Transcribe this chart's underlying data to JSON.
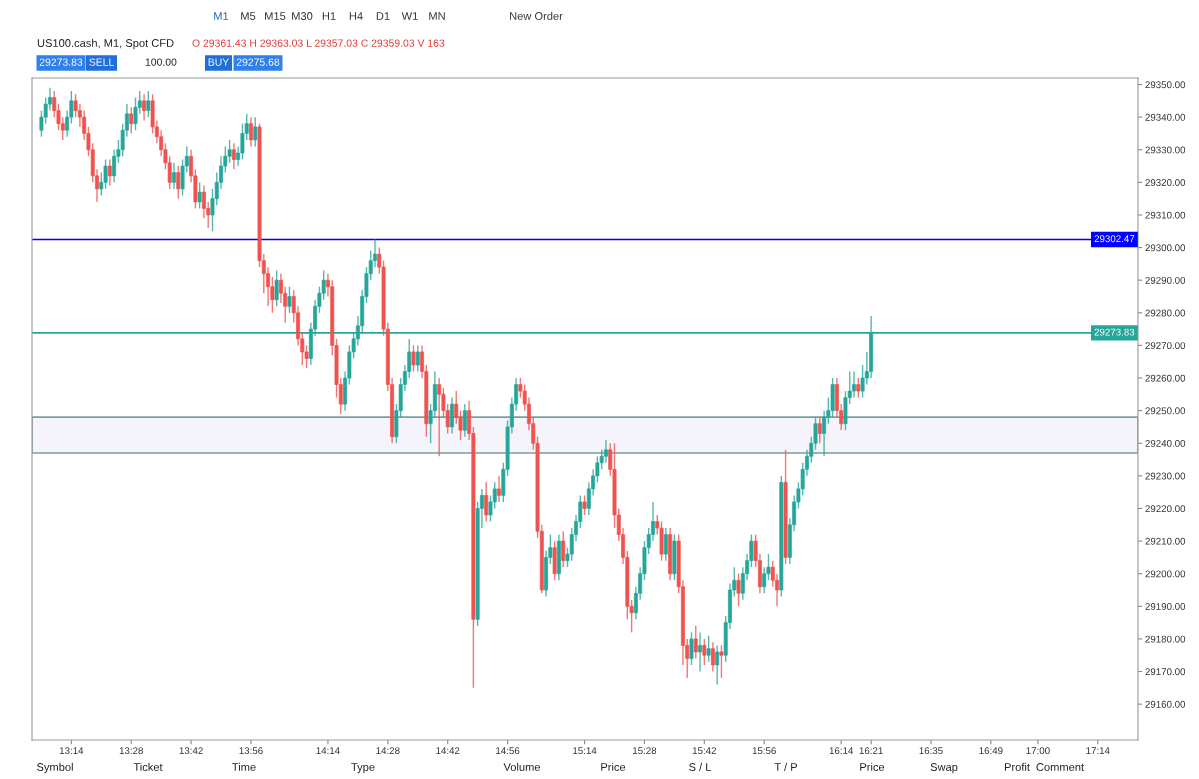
{
  "chart_data": {
    "type": "candlestick",
    "title": "US100.cash, M1, Spot CFD",
    "subtitle": "O 29361.43 H 29363.03 L 29357.03 C 29359.03 V 163",
    "colors": [
      "#26a69a",
      "#26a69a",
      "#26a69a",
      "#ef5350",
      "#ef5350",
      "#ef5350",
      "#26a69a",
      "#26a69a",
      "#ef5350",
      "#ef5350",
      "#ef5350",
      "#ef5350",
      "#ef5350",
      "#ef5350",
      "#26a69a",
      "#26a69a",
      "#ef5350",
      "#26a69a",
      "#26a69a",
      "#26a69a",
      "#26a69a",
      "#ef5350",
      "#26a69a",
      "#26a69a",
      "#ef5350",
      "#26a69a",
      "#ef5350",
      "#ef5350",
      "#ef5350",
      "#ef5350",
      "#ef5350",
      "#26a69a",
      "#ef5350",
      "#26a69a",
      "#26a69a",
      "#ef5350",
      "#ef5350",
      "#26a69a",
      "#ef5350",
      "#ef5350",
      "#26a69a",
      "#26a69a",
      "#26a69a",
      "#26a69a",
      "#26a69a",
      "#ef5350",
      "#26a69a",
      "#26a69a",
      "#26a69a",
      "#ef5350",
      "#26a69a",
      "#ef5350",
      "#ef5350",
      "#ef5350",
      "#ef5350",
      "#26a69a",
      "#ef5350",
      "#ef5350",
      "#26a69a",
      "#ef5350",
      "#ef5350",
      "#ef5350",
      "#ef5350",
      "#26a69a",
      "#26a69a",
      "#26a69a",
      "#26a69a",
      "#ef5350",
      "#ef5350",
      "#ef5350",
      "#ef5350",
      "#26a69a",
      "#26a69a",
      "#26a69a",
      "#26a69a",
      "#26a69a",
      "#26a69a",
      "#26a69a",
      "#26a69a",
      "#ef5350",
      "#ef5350",
      "#ef5350",
      "#ef5350",
      "#26a69a",
      "#26a69a",
      "#26a69a",
      "#26a69a",
      "#ef5350",
      "#26a69a",
      "#ef5350",
      "#ef5350",
      "#26a69a",
      "#26a69a",
      "#ef5350",
      "#ef5350",
      "#ef5350",
      "#26a69a",
      "#ef5350",
      "#ef5350",
      "#26a69a",
      "#ef5350",
      "#ef5350",
      "#26a69a",
      "#26a69a",
      "#ef5350",
      "#26a69a",
      "#26a69a",
      "#ef5350",
      "#26a69a",
      "#26a69a",
      "#26a69a",
      "#26a69a",
      "#ef5350",
      "#ef5350",
      "#ef5350",
      "#ef5350",
      "#ef5350",
      "#ef5350",
      "#26a69a",
      "#26a69a",
      "#ef5350",
      "#26a69a",
      "#ef5350",
      "#26a69a",
      "#26a69a",
      "#26a69a",
      "#26a69a",
      "#ef5350",
      "#26a69a",
      "#26a69a",
      "#26a69a",
      "#26a69a",
      "#26a69a",
      "#ef5350",
      "#ef5350",
      "#ef5350",
      "#ef5350",
      "#ef5350",
      "#ef5350",
      "#26a69a",
      "#26a69a",
      "#26a69a",
      "#26a69a",
      "#26a69a",
      "#ef5350",
      "#ef5350",
      "#26a69a",
      "#ef5350",
      "#26a69a",
      "#ef5350",
      "#ef5350",
      "#ef5350",
      "#26a69a",
      "#ef5350",
      "#26a69a",
      "#ef5350",
      "#26a69a",
      "#ef5350",
      "#26a69a",
      "#ef5350",
      "#26a69a",
      "#26a69a",
      "#26a69a",
      "#ef5350",
      "#26a69a",
      "#26a69a",
      "#26a69a",
      "#ef5350",
      "#ef5350",
      "#26a69a",
      "#26a69a",
      "#ef5350",
      "#ef5350",
      "#26a69a",
      "#ef5350",
      "#26a69a",
      "#26a69a",
      "#26a69a",
      "#26a69a",
      "#26a69a",
      "#26a69a",
      "#26a69a",
      "#ef5350",
      "#26a69a",
      "#26a69a",
      "#26a69a",
      "#ef5350",
      "#ef5350",
      "#26a69a",
      "#26a69a",
      "#26a69a",
      "#ef5350",
      "#26a69a",
      "#26a69a",
      "#26a69a"
    ],
    "x": [
      13.1167,
      13.1333,
      13.15,
      13.1667,
      13.1833,
      13.2,
      13.2167,
      13.2333,
      13.25,
      13.2667,
      13.2833,
      13.3,
      13.3167,
      13.3333,
      13.35,
      13.3667,
      13.3833,
      13.4,
      13.4167,
      13.4333,
      13.45,
      13.4667,
      13.4833,
      13.5,
      13.5167,
      13.5333,
      13.55,
      13.5667,
      13.5833,
      13.6,
      13.6167,
      13.6333,
      13.65,
      13.6667,
      13.6833,
      13.7,
      13.7167,
      13.7333,
      13.75,
      13.7667,
      13.7833,
      13.8,
      13.8167,
      13.8333,
      13.85,
      13.8667,
      13.8833,
      13.9,
      13.9167,
      13.9333,
      13.95,
      13.9667,
      13.9833,
      14.0,
      14.0167,
      14.0333,
      14.05,
      14.0667,
      14.0833,
      14.1,
      14.1167,
      14.1333,
      14.15,
      14.1667,
      14.1833,
      14.2,
      14.2167,
      14.2333,
      14.25,
      14.2667,
      14.2833,
      14.3,
      14.3167,
      14.3333,
      14.35,
      14.3667,
      14.3833,
      14.4,
      14.4167,
      14.4333,
      14.45,
      14.4667,
      14.4833,
      14.5,
      14.5167,
      14.5333,
      14.55,
      14.5667,
      14.5833,
      14.6,
      14.6167,
      14.6333,
      14.65,
      14.6667,
      14.6833,
      14.7,
      14.7167,
      14.7333,
      14.75,
      14.7667,
      14.7833,
      14.8,
      14.8167,
      14.8333,
      14.85,
      14.8667,
      14.8833,
      14.9,
      14.9167,
      14.9333,
      14.95,
      14.9667,
      14.9833,
      15.0,
      15.0167,
      15.0333,
      15.05,
      15.0667,
      15.0833,
      15.1,
      15.1167,
      15.1333,
      15.15,
      15.1667,
      15.1833,
      15.2,
      15.2167,
      15.2333,
      15.25,
      15.2667,
      15.2833,
      15.3,
      15.3167,
      15.3333,
      15.35,
      15.3667,
      15.3833,
      15.4,
      15.4167,
      15.4333,
      15.45,
      15.4667,
      15.4833,
      15.5,
      15.5167,
      15.5333,
      15.55,
      15.5667,
      15.5833,
      15.6,
      15.6167,
      15.6333,
      15.65,
      15.6667,
      15.6833,
      15.7,
      15.7167,
      15.7333,
      15.75,
      15.7667,
      15.7833,
      15.8,
      15.8167,
      15.8333,
      15.85,
      15.8667,
      15.8833,
      15.9,
      15.9167,
      15.9333,
      15.95,
      15.9667,
      15.9833,
      16.0,
      16.0167,
      16.0333,
      16.05,
      16.0667,
      16.0833,
      16.1,
      16.1167,
      16.1333,
      16.15,
      16.1667,
      16.1833,
      16.2,
      16.2167,
      16.2333,
      16.25,
      16.2667,
      16.2833,
      16.3,
      16.3167,
      16.3333,
      16.35
    ],
    "ohlc": [
      [
        29336,
        29342,
        29334,
        29340
      ],
      [
        29340,
        29346,
        29338,
        29344
      ],
      [
        29344,
        29349,
        29342,
        29346
      ],
      [
        29346,
        29348,
        29340,
        29342
      ],
      [
        29342,
        29344,
        29336,
        29338
      ],
      [
        29338,
        29340,
        29333,
        29336
      ],
      [
        29336,
        29342,
        29334,
        29340
      ],
      [
        29340,
        29348,
        29338,
        29345
      ],
      [
        29345,
        29347,
        29340,
        29342
      ],
      [
        29342,
        29344,
        29337,
        29340
      ],
      [
        29340,
        29342,
        29333,
        29335
      ],
      [
        29335,
        29337,
        29328,
        29330
      ],
      [
        29330,
        29332,
        29320,
        29322
      ],
      [
        29322,
        29324,
        29314,
        29318
      ],
      [
        29318,
        29323,
        29316,
        29320
      ],
      [
        29320,
        29327,
        29318,
        29325
      ],
      [
        29325,
        29327,
        29319,
        29322
      ],
      [
        29322,
        29330,
        29320,
        29328
      ],
      [
        29328,
        29333,
        29326,
        29330
      ],
      [
        29330,
        29338,
        29328,
        29336
      ],
      [
        29336,
        29344,
        29334,
        29341
      ],
      [
        29341,
        29343,
        29335,
        29338
      ],
      [
        29338,
        29346,
        29336,
        29343
      ],
      [
        29343,
        29348,
        29341,
        29345
      ],
      [
        29345,
        29347,
        29339,
        29342
      ],
      [
        29342,
        29348,
        29340,
        29345
      ],
      [
        29345,
        29347,
        29335,
        29337
      ],
      [
        29337,
        29339,
        29332,
        29334
      ],
      [
        29334,
        29336,
        29328,
        29330
      ],
      [
        29330,
        29332,
        29324,
        29326
      ],
      [
        29326,
        29328,
        29318,
        29320
      ],
      [
        29320,
        29326,
        29318,
        29323
      ],
      [
        29323,
        29325,
        29315,
        29318
      ],
      [
        29318,
        29327,
        29316,
        29325
      ],
      [
        29325,
        29331,
        29323,
        29328
      ],
      [
        29328,
        29330,
        29320,
        29322
      ],
      [
        29322,
        29324,
        29312,
        29314
      ],
      [
        29314,
        29320,
        29312,
        29317
      ],
      [
        29317,
        29319,
        29309,
        29312
      ],
      [
        29312,
        29314,
        29306,
        29310
      ],
      [
        29310,
        29318,
        29305,
        29315
      ],
      [
        29315,
        29323,
        29313,
        29320
      ],
      [
        29320,
        29328,
        29318,
        29325
      ],
      [
        29325,
        29331,
        29323,
        29328
      ],
      [
        29328,
        29333,
        29326,
        29330
      ],
      [
        29330,
        29332,
        29324,
        29327
      ],
      [
        29327,
        29331,
        29325,
        29329
      ],
      [
        29329,
        29338,
        29327,
        29335
      ],
      [
        29335,
        29341,
        29333,
        29338
      ],
      [
        29338,
        29340,
        29331,
        29333
      ],
      [
        29333,
        29340,
        29331,
        29337
      ],
      [
        29337,
        29338,
        29294,
        29296
      ],
      [
        29296,
        29298,
        29286,
        29292
      ],
      [
        29292,
        29294,
        29282,
        29288
      ],
      [
        29288,
        29291,
        29280,
        29284
      ],
      [
        29284,
        29293,
        29282,
        29290
      ],
      [
        29290,
        29292,
        29283,
        29286
      ],
      [
        29286,
        29288,
        29277,
        29282
      ],
      [
        29282,
        29288,
        29280,
        29285
      ],
      [
        29285,
        29287,
        29277,
        29280
      ],
      [
        29280,
        29282,
        29270,
        29272
      ],
      [
        29272,
        29274,
        29264,
        29268
      ],
      [
        29268,
        29270,
        29263,
        29266
      ],
      [
        29266,
        29277,
        29264,
        29275
      ],
      [
        29275,
        29284,
        29273,
        29282
      ],
      [
        29282,
        29288,
        29280,
        29286
      ],
      [
        29286,
        29293,
        29284,
        29290
      ],
      [
        29290,
        29292,
        29285,
        29288
      ],
      [
        29288,
        29290,
        29267,
        29270
      ],
      [
        29270,
        29272,
        29254,
        29258
      ],
      [
        29258,
        29260,
        29249,
        29252
      ],
      [
        29252,
        29262,
        29250,
        29260
      ],
      [
        29260,
        29270,
        29258,
        29268
      ],
      [
        29268,
        29274,
        29266,
        29272
      ],
      [
        29272,
        29279,
        29270,
        29276
      ],
      [
        29276,
        29287,
        29274,
        29285
      ],
      [
        29285,
        29294,
        29283,
        29292
      ],
      [
        29292,
        29299,
        29290,
        29296
      ],
      [
        29296,
        29302.47,
        29294,
        29298
      ],
      [
        29298,
        29300,
        29292,
        29294
      ],
      [
        29294,
        29296,
        29273,
        29275
      ],
      [
        29275,
        29277,
        29256,
        29258
      ],
      [
        29258,
        29260,
        29240,
        29242
      ],
      [
        29242,
        29252,
        29240,
        29250
      ],
      [
        29250,
        29260,
        29248,
        29258
      ],
      [
        29258,
        29264,
        29256,
        29262
      ],
      [
        29262,
        29272,
        29260,
        29268
      ],
      [
        29268,
        29270,
        29262,
        29264
      ],
      [
        29264,
        29270,
        29262,
        29268
      ],
      [
        29268,
        29270,
        29260,
        29262
      ],
      [
        29262,
        29264,
        29242,
        29246
      ],
      [
        29246,
        29252,
        29240,
        29250
      ],
      [
        29250,
        29262,
        29248,
        29258
      ],
      [
        29258,
        29260,
        29236,
        29255
      ],
      [
        29255,
        29257,
        29248,
        29250
      ],
      [
        29250,
        29252,
        29243,
        29245
      ],
      [
        29245,
        29254,
        29243,
        29252
      ],
      [
        29252,
        29256,
        29246,
        29248
      ],
      [
        29248,
        29250,
        29241,
        29244
      ],
      [
        29244,
        29252,
        29242,
        29250
      ],
      [
        29250,
        29253,
        29241,
        29243
      ],
      [
        29243,
        29245,
        29165,
        29186
      ],
      [
        29186,
        29222,
        29184,
        29220
      ],
      [
        29220,
        29226,
        29214,
        29224
      ],
      [
        29224,
        29228,
        29216,
        29218
      ],
      [
        29218,
        29224,
        29216,
        29222
      ],
      [
        29222,
        29228,
        29220,
        29226
      ],
      [
        29226,
        29230,
        29222,
        29224
      ],
      [
        29224,
        29234,
        29222,
        29232
      ],
      [
        29232,
        29247,
        29230,
        29245
      ],
      [
        29245,
        29254,
        29243,
        29252
      ],
      [
        29252,
        29260,
        29250,
        29258
      ],
      [
        29258,
        29260,
        29254,
        29256
      ],
      [
        29256,
        29258,
        29250,
        29252
      ],
      [
        29252,
        29254,
        29244,
        29246
      ],
      [
        29246,
        29248,
        29238,
        29240
      ],
      [
        29240,
        29242,
        29211,
        29213
      ],
      [
        29213,
        29215,
        29194,
        29195
      ],
      [
        29195,
        29207,
        29193,
        29205
      ],
      [
        29205,
        29212,
        29203,
        29208
      ],
      [
        29208,
        29210,
        29198,
        29200
      ],
      [
        29200,
        29212,
        29198,
        29210
      ],
      [
        29210,
        29213,
        29202,
        29204
      ],
      [
        29204,
        29208,
        29202,
        29206
      ],
      [
        29206,
        29214,
        29204,
        29212
      ],
      [
        29212,
        29218,
        29210,
        29216
      ],
      [
        29216,
        29224,
        29214,
        29222
      ],
      [
        29222,
        29224,
        29218,
        29220
      ],
      [
        29220,
        29228,
        29218,
        29226
      ],
      [
        29226,
        29232,
        29224,
        29230
      ],
      [
        29230,
        29236,
        29228,
        29234
      ],
      [
        29234,
        29238,
        29232,
        29236
      ],
      [
        29236,
        29241,
        29234,
        29238
      ],
      [
        29238,
        29240,
        29230,
        29232
      ],
      [
        29232,
        29240,
        29214,
        29218
      ],
      [
        29218,
        29220,
        29210,
        29212
      ],
      [
        29212,
        29214,
        29203,
        29205
      ],
      [
        29205,
        29207,
        29186,
        29190
      ],
      [
        29190,
        29192,
        29182,
        29188
      ],
      [
        29188,
        29196,
        29186,
        29194
      ],
      [
        29194,
        29202,
        29192,
        29200
      ],
      [
        29200,
        29210,
        29198,
        29208
      ],
      [
        29208,
        29214,
        29206,
        29212
      ],
      [
        29212,
        29222,
        29210,
        29216
      ],
      [
        29216,
        29218,
        29212,
        29214
      ],
      [
        29214,
        29216,
        29204,
        29206
      ],
      [
        29206,
        29214,
        29204,
        29212
      ],
      [
        29212,
        29214,
        29198,
        29200
      ],
      [
        29200,
        29212,
        29198,
        29210
      ],
      [
        29210,
        29212,
        29194,
        29196
      ],
      [
        29196,
        29198,
        29172,
        29178
      ],
      [
        29178,
        29180,
        29168,
        29174
      ],
      [
        29174,
        29182,
        29172,
        29180
      ],
      [
        29180,
        29184,
        29174,
        29176
      ],
      [
        29176,
        29182,
        29170,
        29178
      ],
      [
        29178,
        29180,
        29172,
        29175
      ],
      [
        29175,
        29181,
        29173,
        29177
      ],
      [
        29177,
        29179,
        29170,
        29172
      ],
      [
        29172,
        29178,
        29166,
        29176
      ],
      [
        29176,
        29178,
        29168,
        29175
      ],
      [
        29175,
        29187,
        29173,
        29185
      ],
      [
        29185,
        29197,
        29183,
        29195
      ],
      [
        29195,
        29202,
        29193,
        29198
      ],
      [
        29198,
        29200,
        29190,
        29194
      ],
      [
        29194,
        29202,
        29192,
        29200
      ],
      [
        29200,
        29206,
        29198,
        29204
      ],
      [
        29204,
        29212,
        29202,
        29210
      ],
      [
        29210,
        29212,
        29202,
        29204
      ],
      [
        29204,
        29206,
        29194,
        29196
      ],
      [
        29196,
        29202,
        29194,
        29200
      ],
      [
        29200,
        29206,
        29198,
        29202
      ],
      [
        29202,
        29204,
        29196,
        29198
      ],
      [
        29198,
        29200,
        29190,
        29195
      ],
      [
        29195,
        29230,
        29193,
        29228
      ],
      [
        29228,
        29238,
        29203,
        29205
      ],
      [
        29205,
        29217,
        29203,
        29215
      ],
      [
        29215,
        29224,
        29213,
        29222
      ],
      [
        29222,
        29228,
        29220,
        29226
      ],
      [
        29226,
        29234,
        29224,
        29232
      ],
      [
        29232,
        29238,
        29230,
        29236
      ],
      [
        29236,
        29242,
        29234,
        29240
      ],
      [
        29240,
        29248,
        29238,
        29246
      ],
      [
        29246,
        29248,
        29240,
        29243
      ],
      [
        29243,
        29250,
        29236,
        29248
      ],
      [
        29248,
        29254,
        29246,
        29250
      ],
      [
        29250,
        29260,
        29248,
        29258
      ],
      [
        29258,
        29260,
        29248,
        29250
      ],
      [
        29250,
        29252,
        29244,
        29246
      ],
      [
        29246,
        29256,
        29244,
        29254
      ],
      [
        29254,
        29262,
        29252,
        29256
      ],
      [
        29256,
        29262,
        29254,
        29258
      ],
      [
        29258,
        29260,
        29254,
        29256
      ],
      [
        29256,
        29264,
        29254,
        29260
      ],
      [
        29260,
        29268,
        29258,
        29262
      ],
      [
        29262,
        29279,
        29260,
        29274
      ]
    ],
    "xlim": [
      13.08,
      17.39
    ],
    "xticks": [
      {
        "value": 13.2333,
        "label": "13:14"
      },
      {
        "value": 13.4667,
        "label": "13:28"
      },
      {
        "value": 13.7,
        "label": "13:42"
      },
      {
        "value": 13.9333,
        "label": "13:56"
      },
      {
        "value": 14.2333,
        "label": "14:14"
      },
      {
        "value": 14.4667,
        "label": "14:28"
      },
      {
        "value": 14.7,
        "label": "14:42"
      },
      {
        "value": 14.9333,
        "label": "14:56"
      },
      {
        "value": 15.2333,
        "label": "15:14"
      },
      {
        "value": 15.4667,
        "label": "15:28"
      },
      {
        "value": 15.7,
        "label": "15:42"
      },
      {
        "value": 15.9333,
        "label": "15:56"
      },
      {
        "value": 16.2333,
        "label": "16:14"
      },
      {
        "value": 16.35,
        "label": "16:21"
      },
      {
        "value": 16.5833,
        "label": "16:35"
      },
      {
        "value": 16.8167,
        "label": "16:49"
      },
      {
        "value": 17.0,
        "label": "17:00"
      },
      {
        "value": 17.2333,
        "label": "17:14"
      }
    ],
    "ylim": [
      29149,
      29352
    ],
    "yticks": [
      {
        "value": 29160,
        "label": "29160.00"
      },
      {
        "value": 29170,
        "label": "29170.00"
      },
      {
        "value": 29180,
        "label": "29180.00"
      },
      {
        "value": 29190,
        "label": "29190.00"
      },
      {
        "value": 29200,
        "label": "29200.00"
      },
      {
        "value": 29210,
        "label": "29210.00"
      },
      {
        "value": 29220,
        "label": "29220.00"
      },
      {
        "value": 29230,
        "label": "29230.00"
      },
      {
        "value": 29240,
        "label": "29240.00"
      },
      {
        "value": 29250,
        "label": "29250.00"
      },
      {
        "value": 29260,
        "label": "29260.00"
      },
      {
        "value": 29270,
        "label": "29270.00"
      },
      {
        "value": 29280,
        "label": "29280.00"
      },
      {
        "value": 29290,
        "label": "29290.00"
      },
      {
        "value": 29300,
        "label": "29300.00"
      },
      {
        "value": 29310,
        "label": "29310.00"
      },
      {
        "value": 29320,
        "label": "29320.00"
      },
      {
        "value": 29330,
        "label": "29330.00"
      },
      {
        "value": 29340,
        "label": "29340.00"
      },
      {
        "value": 29350,
        "label": "29350.00"
      }
    ],
    "ref_lines": [
      {
        "axis": "y",
        "value": 29302.47,
        "label": "29302.47",
        "color": "#0000ff"
      },
      {
        "axis": "y",
        "value": 29273.83,
        "label": "29273.83",
        "color": "#26a69a"
      }
    ],
    "bands": [
      {
        "axis": "y",
        "from": 29237,
        "to": 29248,
        "color": "#f4f4fa"
      }
    ],
    "annotations": [
      "29273.83",
      "SELL",
      "100.00",
      "BUY",
      "29275.68",
      "M1",
      "M5",
      "M15",
      "M30",
      "H1",
      "H4",
      "D1",
      "W1",
      "MN",
      "New Order",
      "Symbol",
      "Ticket",
      "Time",
      "Type",
      "Volume",
      "Price",
      "S / L",
      "T / P",
      "Price",
      "Swap",
      "Profit",
      "Comment"
    ]
  }
}
